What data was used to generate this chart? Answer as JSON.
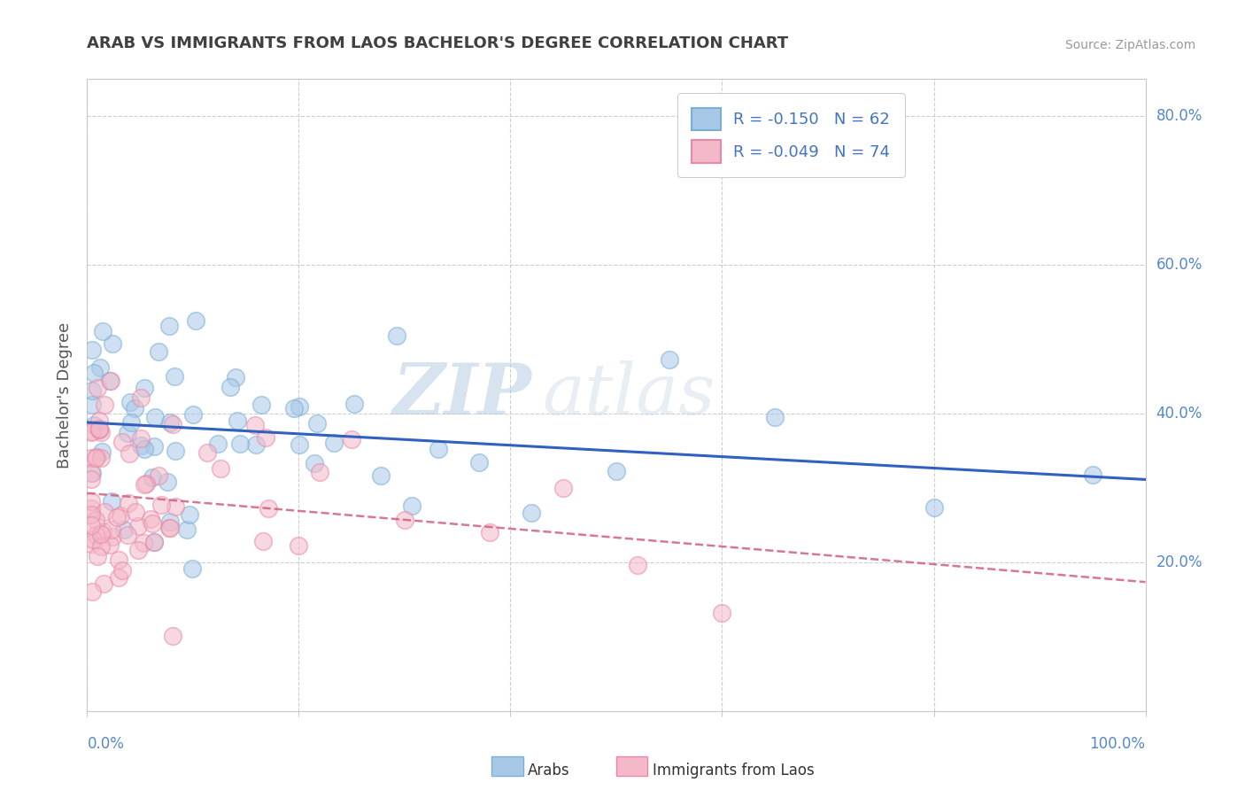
{
  "title": "ARAB VS IMMIGRANTS FROM LAOS BACHELOR'S DEGREE CORRELATION CHART",
  "source": "Source: ZipAtlas.com",
  "ylabel": "Bachelor's Degree",
  "x_min": 0.0,
  "x_max": 1.0,
  "y_min": 0.0,
  "y_max": 0.85,
  "x_ticks": [
    0.0,
    0.2,
    0.4,
    0.6,
    0.8,
    1.0
  ],
  "x_tick_labels": [
    "0.0%",
    "",
    "",
    "",
    "",
    "100.0%"
  ],
  "y_ticks": [
    0.2,
    0.4,
    0.6,
    0.8
  ],
  "y_tick_labels": [
    "20.0%",
    "40.0%",
    "60.0%",
    "80.0%"
  ],
  "arab_color": "#a8c8e8",
  "arab_edge_color": "#7aafd4",
  "laos_color": "#f4b8c8",
  "laos_edge_color": "#e888a8",
  "arab_R": -0.15,
  "arab_N": 62,
  "laos_R": -0.049,
  "laos_N": 74,
  "legend_label_arab": "Arabs",
  "legend_label_laos": "Immigrants from Laos",
  "arab_line_color": "#3060c0",
  "laos_line_color": "#d06080",
  "background_color": "#ffffff",
  "grid_color": "#c8c8c8",
  "ytick_color": "#5588cc",
  "xtick_color": "#5588cc",
  "watermark_zip": "ZIP",
  "watermark_atlas": "atlas",
  "title_color": "#404040",
  "source_color": "#999999"
}
